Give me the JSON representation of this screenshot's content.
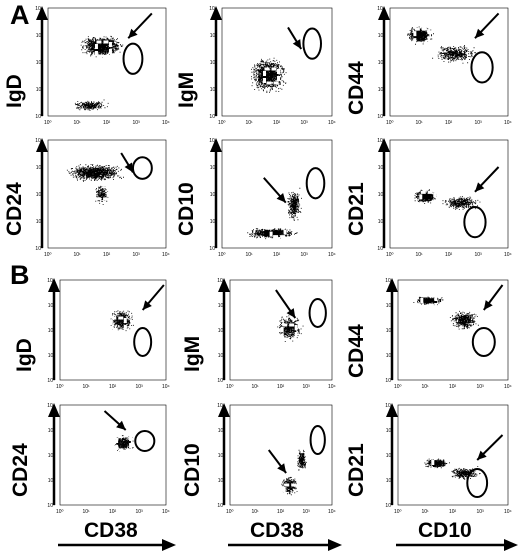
{
  "panels": [
    {
      "letter": "A",
      "rows": [
        [
          {
            "ylabel": "IgD",
            "xlabel": "",
            "pattern": "igd"
          },
          {
            "ylabel": "IgM",
            "xlabel": "",
            "pattern": "igm"
          },
          {
            "ylabel": "CD44",
            "xlabel": "",
            "pattern": "cd44"
          }
        ],
        [
          {
            "ylabel": "CD24",
            "xlabel": "",
            "pattern": "cd24"
          },
          {
            "ylabel": "CD10",
            "xlabel": "",
            "pattern": "cd10"
          },
          {
            "ylabel": "CD21",
            "xlabel": "",
            "pattern": "cd21"
          }
        ]
      ]
    },
    {
      "letter": "B",
      "rows": [
        [
          {
            "ylabel": "IgD",
            "xlabel": "",
            "pattern": "igdB"
          },
          {
            "ylabel": "IgM",
            "xlabel": "",
            "pattern": "igmB"
          },
          {
            "ylabel": "CD44",
            "xlabel": "",
            "pattern": "cd44B"
          }
        ],
        [
          {
            "ylabel": "CD24",
            "xlabel": "CD38",
            "pattern": "cd24B"
          },
          {
            "ylabel": "CD10",
            "xlabel": "CD38",
            "pattern": "cd10B"
          },
          {
            "ylabel": "CD21",
            "xlabel": "CD10",
            "pattern": "cd21B"
          }
        ]
      ]
    }
  ],
  "axis_ticks": [
    "10⁰",
    "10¹",
    "10²",
    "10³",
    "10⁴"
  ],
  "colors": {
    "ink": "#000000",
    "background": "#ffffff"
  }
}
